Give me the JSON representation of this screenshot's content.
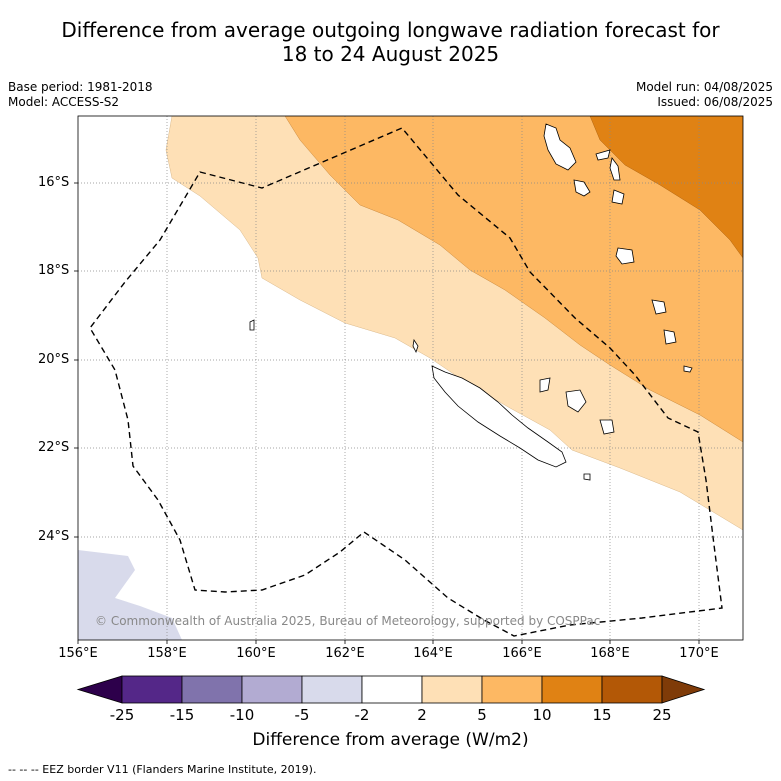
{
  "title_line1": "Difference from average outgoing longwave radiation forecast for",
  "title_line2": "18 to 24 August 2025",
  "base_period": "Base period: 1981-2018",
  "model": "Model: ACCESS-S2",
  "model_run": "Model run: 04/08/2025",
  "issued": "Issued: 06/08/2025",
  "lat_labels": [
    "16°S",
    "18°S",
    "20°S",
    "22°S",
    "24°S"
  ],
  "lon_labels": [
    "156°E",
    "158°E",
    "160°E",
    "162°E",
    "164°E",
    "166°E",
    "168°E",
    "170°E"
  ],
  "copyright": "© Commonwealth of Australia 2025, Bureau of Meteorology, supported by COSPPac",
  "colorbar": {
    "ticks": [
      "-25",
      "-15",
      "-10",
      "-5",
      "-2",
      "2",
      "5",
      "10",
      "15",
      "25"
    ],
    "colors": [
      "#542788",
      "#8073ac",
      "#b2abd2",
      "#d8daeb",
      "#ffffff",
      "#fee0b6",
      "#fdb863",
      "#e08214",
      "#b35806"
    ],
    "under_color": "#2d004b",
    "over_color": "#7f3b08",
    "label": "Difference from average (W/m2)"
  },
  "footnote": "--  --  -- EEZ border V11 (Flanders Marine Institute, 2019)."
}
